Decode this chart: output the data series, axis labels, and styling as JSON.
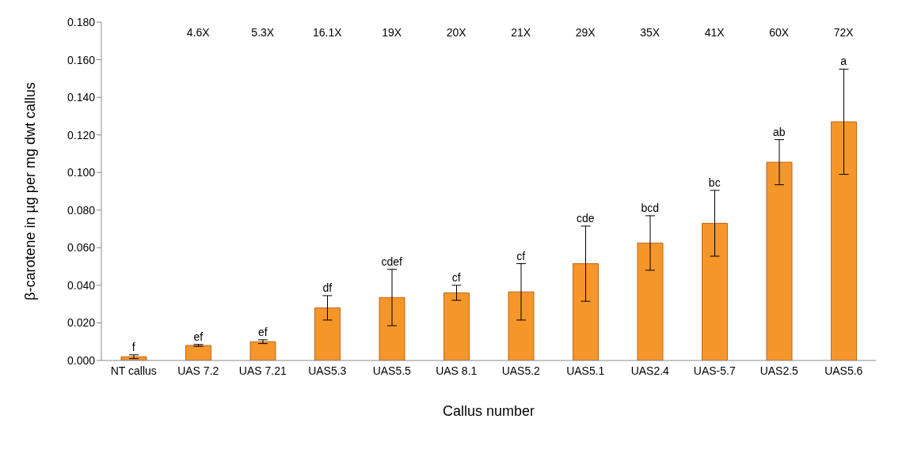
{
  "chart_data": {
    "type": "bar",
    "xlabel": "Callus number",
    "ylabel": "β-carotene in µg per mg dwt callus",
    "categories": [
      "NT callus",
      "UAS 7.2",
      "UAS 7.21",
      "UAS5.3",
      "UAS5.5",
      "UAS 8.1",
      "UAS5.2",
      "UAS5.1",
      "UAS2.4",
      "UAS-5.7",
      "UAS2.5",
      "UAS5.6"
    ],
    "values": [
      0.002,
      0.008,
      0.01,
      0.028,
      0.0335,
      0.036,
      0.0365,
      0.0515,
      0.0625,
      0.073,
      0.1055,
      0.127
    ],
    "errors": [
      0.001,
      0.0005,
      0.001,
      0.0065,
      0.015,
      0.004,
      0.015,
      0.02,
      0.0145,
      0.0175,
      0.012,
      0.028
    ],
    "color": "#f5962a",
    "ylim": [
      0,
      0.18
    ],
    "yticks": [
      {
        "value": 0,
        "label": "0.000"
      },
      {
        "value": 0.02,
        "label": "0.020"
      },
      {
        "value": 0.04,
        "label": "0.040"
      },
      {
        "value": 0.06,
        "label": "0.060"
      },
      {
        "value": 0.08,
        "label": "0.080"
      },
      {
        "value": 0.1,
        "label": "0.100"
      },
      {
        "value": 0.12,
        "label": "0.120"
      },
      {
        "value": 0.14,
        "label": "0.140"
      },
      {
        "value": 0.16,
        "label": "0.160"
      },
      {
        "value": 0.18,
        "label": "0.180"
      }
    ],
    "grid": false,
    "legend": false,
    "annotations": [
      {
        "text": "f",
        "x": "NT callus",
        "y": 0.003
      },
      {
        "text": "ef",
        "x": "UAS 7.2",
        "y": 0.0085
      },
      {
        "text": "ef",
        "x": "UAS 7.21",
        "y": 0.011
      },
      {
        "text": "df",
        "x": "UAS5.3",
        "y": 0.0345
      },
      {
        "text": "cdef",
        "x": "UAS5.5",
        "y": 0.0485
      },
      {
        "text": "cf",
        "x": "UAS 8.1",
        "y": 0.04
      },
      {
        "text": "cf",
        "x": "UAS5.2",
        "y": 0.0515
      },
      {
        "text": "cde",
        "x": "UAS5.1",
        "y": 0.0715
      },
      {
        "text": "bcd",
        "x": "UAS2.4",
        "y": 0.077
      },
      {
        "text": "bc",
        "x": "UAS-5.7",
        "y": 0.0905
      },
      {
        "text": "ab",
        "x": "UAS2.5",
        "y": 0.1175
      },
      {
        "text": "a",
        "x": "UAS5.6",
        "y": 0.155
      },
      "4.6X",
      "5.3X",
      "16.1X",
      "19X",
      "20X",
      "21X",
      "29X",
      "35X",
      "41X",
      "60X",
      "72X"
    ]
  }
}
